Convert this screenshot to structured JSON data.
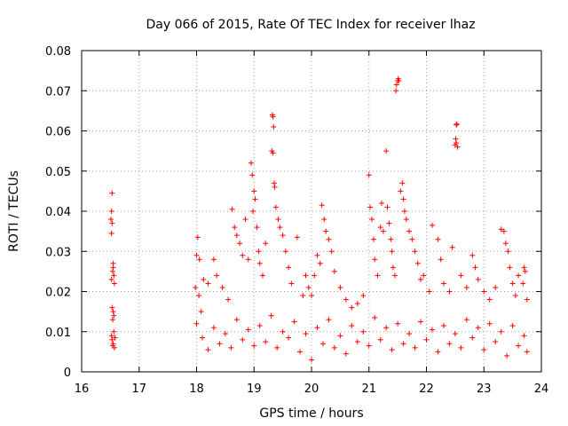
{
  "chart_data": {
    "type": "scatter",
    "title": "Day 066 of 2015, Rate Of TEC Index for receiver lhaz",
    "xlabel": "GPS time / hours",
    "ylabel": "ROTI / TECUs",
    "xlim": [
      16,
      24
    ],
    "ylim": [
      0,
      0.08
    ],
    "xticks": [
      "16",
      "17",
      "18",
      "19",
      "20",
      "21",
      "22",
      "23",
      "24"
    ],
    "yticks": [
      "0",
      "0.01",
      "0.02",
      "0.03",
      "0.04",
      "0.05",
      "0.06",
      "0.07",
      "0.08"
    ],
    "grid": true,
    "marker": "+",
    "color": "#ff0000",
    "series": [
      {
        "name": "ROTI",
        "points": [
          [
            16.53,
            0.0445
          ],
          [
            16.52,
            0.04
          ],
          [
            16.51,
            0.038
          ],
          [
            16.53,
            0.037
          ],
          [
            16.52,
            0.0345
          ],
          [
            16.55,
            0.027
          ],
          [
            16.54,
            0.025
          ],
          [
            16.56,
            0.024
          ],
          [
            16.52,
            0.023
          ],
          [
            16.57,
            0.022
          ],
          [
            16.55,
            0.026
          ],
          [
            16.53,
            0.016
          ],
          [
            16.55,
            0.015
          ],
          [
            16.56,
            0.014
          ],
          [
            16.54,
            0.013
          ],
          [
            16.52,
            0.009
          ],
          [
            16.53,
            0.008
          ],
          [
            16.55,
            0.007
          ],
          [
            16.56,
            0.01
          ],
          [
            16.57,
            0.006
          ],
          [
            16.54,
            0.0065
          ],
          [
            16.58,
            0.0085
          ],
          [
            18.0,
            0.029
          ],
          [
            18.02,
            0.0335
          ],
          [
            18.05,
            0.028
          ],
          [
            17.98,
            0.021
          ],
          [
            18.04,
            0.019
          ],
          [
            18.08,
            0.015
          ],
          [
            18.12,
            0.023
          ],
          [
            18.2,
            0.022
          ],
          [
            18.3,
            0.028
          ],
          [
            18.35,
            0.024
          ],
          [
            18.45,
            0.021
          ],
          [
            18.55,
            0.018
          ],
          [
            18.62,
            0.0405
          ],
          [
            18.66,
            0.036
          ],
          [
            18.7,
            0.034
          ],
          [
            18.75,
            0.032
          ],
          [
            18.8,
            0.029
          ],
          [
            18.85,
            0.038
          ],
          [
            18.9,
            0.028
          ],
          [
            18.95,
            0.052
          ],
          [
            18.97,
            0.049
          ],
          [
            19.0,
            0.045
          ],
          [
            19.02,
            0.043
          ],
          [
            18.98,
            0.04
          ],
          [
            19.05,
            0.036
          ],
          [
            19.08,
            0.03
          ],
          [
            19.1,
            0.027
          ],
          [
            19.15,
            0.024
          ],
          [
            19.2,
            0.032
          ],
          [
            19.32,
            0.064
          ],
          [
            19.33,
            0.0635
          ],
          [
            19.34,
            0.061
          ],
          [
            19.31,
            0.055
          ],
          [
            19.33,
            0.0545
          ],
          [
            19.35,
            0.047
          ],
          [
            19.36,
            0.046
          ],
          [
            19.38,
            0.041
          ],
          [
            19.42,
            0.038
          ],
          [
            19.45,
            0.036
          ],
          [
            19.5,
            0.034
          ],
          [
            19.55,
            0.03
          ],
          [
            19.6,
            0.026
          ],
          [
            19.65,
            0.022
          ],
          [
            19.75,
            0.0335
          ],
          [
            19.85,
            0.019
          ],
          [
            19.9,
            0.024
          ],
          [
            19.95,
            0.021
          ],
          [
            20.0,
            0.019
          ],
          [
            20.05,
            0.024
          ],
          [
            20.1,
            0.029
          ],
          [
            20.15,
            0.027
          ],
          [
            20.18,
            0.0415
          ],
          [
            20.22,
            0.038
          ],
          [
            20.25,
            0.035
          ],
          [
            20.3,
            0.033
          ],
          [
            20.35,
            0.03
          ],
          [
            20.4,
            0.025
          ],
          [
            20.5,
            0.021
          ],
          [
            20.6,
            0.018
          ],
          [
            20.7,
            0.016
          ],
          [
            20.8,
            0.017
          ],
          [
            20.9,
            0.019
          ],
          [
            21.0,
            0.049
          ],
          [
            21.02,
            0.041
          ],
          [
            21.05,
            0.038
          ],
          [
            21.08,
            0.033
          ],
          [
            21.1,
            0.028
          ],
          [
            21.15,
            0.024
          ],
          [
            21.2,
            0.036
          ],
          [
            21.22,
            0.042
          ],
          [
            21.25,
            0.035
          ],
          [
            21.3,
            0.055
          ],
          [
            21.32,
            0.041
          ],
          [
            21.35,
            0.037
          ],
          [
            21.38,
            0.033
          ],
          [
            21.4,
            0.03
          ],
          [
            21.42,
            0.026
          ],
          [
            21.45,
            0.024
          ],
          [
            21.47,
            0.07
          ],
          [
            21.48,
            0.0715
          ],
          [
            21.5,
            0.0725
          ],
          [
            21.51,
            0.073
          ],
          [
            21.52,
            0.0725
          ],
          [
            21.55,
            0.045
          ],
          [
            21.58,
            0.047
          ],
          [
            21.6,
            0.043
          ],
          [
            21.62,
            0.04
          ],
          [
            21.65,
            0.038
          ],
          [
            21.7,
            0.035
          ],
          [
            21.75,
            0.033
          ],
          [
            21.8,
            0.03
          ],
          [
            21.85,
            0.027
          ],
          [
            21.9,
            0.023
          ],
          [
            21.95,
            0.024
          ],
          [
            22.05,
            0.02
          ],
          [
            22.1,
            0.0365
          ],
          [
            22.2,
            0.033
          ],
          [
            22.25,
            0.028
          ],
          [
            22.3,
            0.022
          ],
          [
            22.4,
            0.02
          ],
          [
            22.45,
            0.031
          ],
          [
            22.52,
            0.0615
          ],
          [
            22.53,
            0.0617
          ],
          [
            22.51,
            0.058
          ],
          [
            22.52,
            0.057
          ],
          [
            22.54,
            0.056
          ],
          [
            22.5,
            0.0565
          ],
          [
            22.6,
            0.024
          ],
          [
            22.7,
            0.021
          ],
          [
            22.8,
            0.029
          ],
          [
            22.85,
            0.026
          ],
          [
            22.9,
            0.023
          ],
          [
            23.0,
            0.02
          ],
          [
            23.1,
            0.018
          ],
          [
            23.2,
            0.021
          ],
          [
            23.3,
            0.0355
          ],
          [
            23.35,
            0.035
          ],
          [
            23.38,
            0.032
          ],
          [
            23.42,
            0.03
          ],
          [
            23.45,
            0.026
          ],
          [
            23.5,
            0.022
          ],
          [
            23.55,
            0.019
          ],
          [
            23.6,
            0.024
          ],
          [
            23.7,
            0.026
          ],
          [
            23.72,
            0.025
          ],
          [
            23.68,
            0.022
          ],
          [
            23.75,
            0.018
          ],
          [
            18.0,
            0.012
          ],
          [
            18.1,
            0.0085
          ],
          [
            18.2,
            0.0055
          ],
          [
            18.3,
            0.011
          ],
          [
            18.4,
            0.007
          ],
          [
            18.5,
            0.0095
          ],
          [
            18.6,
            0.006
          ],
          [
            18.7,
            0.013
          ],
          [
            18.8,
            0.008
          ],
          [
            18.9,
            0.0105
          ],
          [
            19.0,
            0.0065
          ],
          [
            19.1,
            0.0115
          ],
          [
            19.2,
            0.0075
          ],
          [
            19.3,
            0.014
          ],
          [
            19.4,
            0.006
          ],
          [
            19.5,
            0.01
          ],
          [
            19.6,
            0.0085
          ],
          [
            19.7,
            0.0125
          ],
          [
            19.8,
            0.005
          ],
          [
            19.9,
            0.0095
          ],
          [
            20.0,
            0.003
          ],
          [
            20.1,
            0.011
          ],
          [
            20.2,
            0.007
          ],
          [
            20.3,
            0.013
          ],
          [
            20.4,
            0.006
          ],
          [
            20.5,
            0.009
          ],
          [
            20.6,
            0.0045
          ],
          [
            20.7,
            0.0115
          ],
          [
            20.8,
            0.0075
          ],
          [
            20.9,
            0.01
          ],
          [
            21.0,
            0.0065
          ],
          [
            21.1,
            0.0135
          ],
          [
            21.2,
            0.008
          ],
          [
            21.3,
            0.011
          ],
          [
            21.4,
            0.0055
          ],
          [
            21.5,
            0.012
          ],
          [
            21.6,
            0.007
          ],
          [
            21.7,
            0.0095
          ],
          [
            21.8,
            0.006
          ],
          [
            21.9,
            0.0125
          ],
          [
            22.0,
            0.008
          ],
          [
            22.1,
            0.0105
          ],
          [
            22.2,
            0.005
          ],
          [
            22.3,
            0.0115
          ],
          [
            22.4,
            0.007
          ],
          [
            22.5,
            0.0095
          ],
          [
            22.6,
            0.006
          ],
          [
            22.7,
            0.013
          ],
          [
            22.8,
            0.0085
          ],
          [
            22.9,
            0.011
          ],
          [
            23.0,
            0.0055
          ],
          [
            23.1,
            0.012
          ],
          [
            23.2,
            0.0075
          ],
          [
            23.3,
            0.01
          ],
          [
            23.4,
            0.004
          ],
          [
            23.5,
            0.0115
          ],
          [
            23.6,
            0.0065
          ],
          [
            23.7,
            0.009
          ],
          [
            23.75,
            0.005
          ]
        ]
      }
    ]
  }
}
